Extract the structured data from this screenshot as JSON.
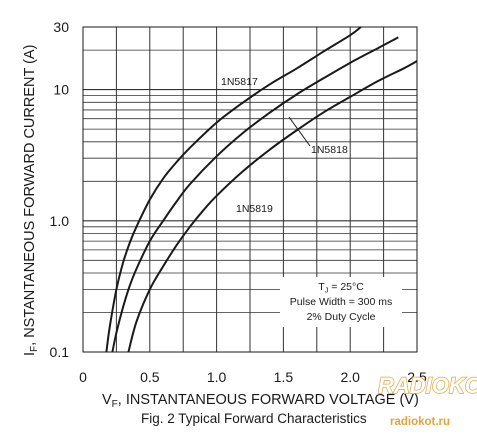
{
  "chart_data": {
    "type": "line",
    "x_axis": {
      "label_main": "V",
      "label_sub": "F",
      "label_rest": ", INSTANTANEOUS FORWARD VOLTAGE (V)",
      "range": [
        0,
        2.5
      ],
      "ticks": [
        {
          "value": 0,
          "label": "0"
        },
        {
          "value": 0.5,
          "label": "0.5"
        },
        {
          "value": 1.0,
          "label": "1.0"
        },
        {
          "value": 1.5,
          "label": "1.5"
        },
        {
          "value": 2.0,
          "label": "2.0"
        },
        {
          "value": 2.5,
          "label": "2.5"
        }
      ],
      "grid_step": 0.25
    },
    "y_axis": {
      "label_main": "I",
      "label_sub": "F",
      "label_rest": ", NSTANTANEOUS FORWARD CURRENT (A)",
      "scale": "log",
      "range": [
        0.1,
        30
      ],
      "ticks": [
        {
          "value": 0.1,
          "label": "0.1"
        },
        {
          "value": 1.0,
          "label": "1.0"
        },
        {
          "value": 10,
          "label": "10"
        },
        {
          "value": 30,
          "label": "30"
        }
      ]
    },
    "grid": true,
    "series": [
      {
        "name": "1N5817",
        "x": [
          0.175,
          0.2,
          0.25,
          0.3,
          0.35,
          0.4,
          0.5,
          0.6,
          0.7,
          0.8,
          1.0,
          1.2,
          1.4,
          1.6,
          1.8,
          2.0,
          2.08
        ],
        "y": [
          0.1,
          0.155,
          0.3,
          0.48,
          0.68,
          0.9,
          1.45,
          2.1,
          2.8,
          3.6,
          5.6,
          8.0,
          11.0,
          14.5,
          19.5,
          26.0,
          30.0
        ]
      },
      {
        "name": "1N5818",
        "x": [
          0.22,
          0.25,
          0.3,
          0.35,
          0.4,
          0.5,
          0.6,
          0.7,
          0.8,
          1.0,
          1.2,
          1.4,
          1.6,
          1.8,
          2.0,
          2.2,
          2.36
        ],
        "y": [
          0.1,
          0.14,
          0.22,
          0.32,
          0.43,
          0.7,
          1.0,
          1.4,
          1.9,
          3.1,
          4.7,
          6.7,
          9.2,
          12.2,
          16.0,
          20.5,
          25.0
        ]
      },
      {
        "name": "1N5819",
        "x": [
          0.34,
          0.4,
          0.5,
          0.6,
          0.7,
          0.8,
          0.9,
          1.0,
          1.2,
          1.4,
          1.6,
          1.8,
          2.0,
          2.2,
          2.4,
          2.5
        ],
        "y": [
          0.1,
          0.17,
          0.3,
          0.45,
          0.65,
          0.9,
          1.2,
          1.55,
          2.4,
          3.5,
          4.9,
          6.7,
          8.8,
          11.5,
          14.5,
          16.5
        ]
      }
    ],
    "annotations": {
      "conditions": [
        "T",
        "J",
        " = 25°C",
        "Pulse Width = 300 ms",
        "2% Duty Cycle"
      ]
    },
    "caption": "Fig. 2  Typical Forward Characteristics"
  },
  "watermark": {
    "logo": "RADIOKOT",
    "url": "radiokot.ru"
  }
}
